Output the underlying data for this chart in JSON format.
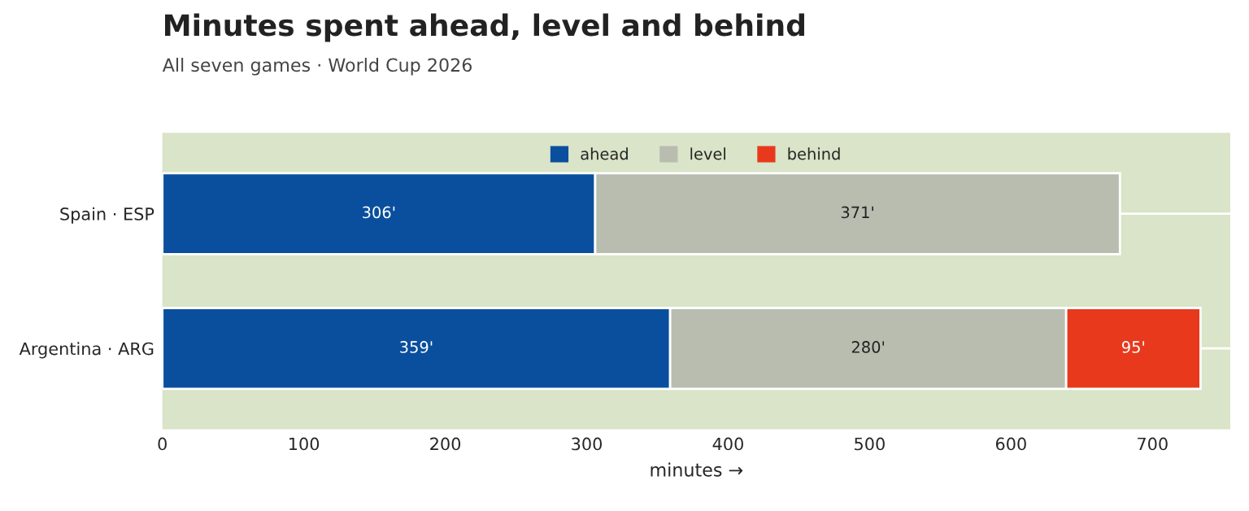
{
  "chart_data": {
    "type": "bar",
    "orientation": "horizontal",
    "stacked": true,
    "title": "Minutes spent ahead, level and behind",
    "subtitle": "All seven games · World Cup 2026",
    "xlabel": "minutes →",
    "categories": [
      "Spain · ESP",
      "Argentina · ARG"
    ],
    "series": [
      {
        "name": "ahead",
        "color": "#0a4f9e",
        "values": [
          306,
          359
        ],
        "value_labels": [
          "306'",
          "359'"
        ]
      },
      {
        "name": "level",
        "color": "#b8bdb0",
        "values": [
          371,
          280
        ],
        "value_labels": [
          "371'",
          "280'"
        ]
      },
      {
        "name": "behind",
        "color": "#e8391d",
        "values": [
          null,
          95
        ],
        "value_labels": [
          null,
          "95'"
        ]
      }
    ],
    "xlim": [
      0,
      755
    ],
    "xticks": [
      0,
      100,
      200,
      300,
      400,
      500,
      600,
      700
    ],
    "grid": "y",
    "legend": "top"
  }
}
